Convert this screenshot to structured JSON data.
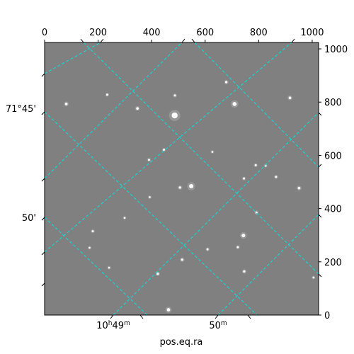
{
  "chart_data": {
    "type": "image",
    "xlabel": "pos.eq.ra",
    "pixel_axes": {
      "x": {
        "range": [
          0,
          1024
        ],
        "ticks": [
          0,
          200,
          400,
          600,
          800,
          1000
        ]
      },
      "y": {
        "range": [
          0,
          1024
        ],
        "ticks": [
          0,
          200,
          400,
          600,
          800,
          1000
        ]
      }
    },
    "world_ticks": {
      "ra_bottom": [
        {
          "base": "10",
          "hour_sup": "h",
          "minutes": "49",
          "min_sup": "m"
        },
        {
          "base": "",
          "hour_sup": "",
          "minutes": "50",
          "min_sup": "m"
        }
      ],
      "dec_left": [
        "71°45'",
        "50'"
      ]
    },
    "grid": {
      "on": true,
      "color": "#00e5e5",
      "style": "dashed"
    },
    "image_background": "#808080",
    "stars": [
      {
        "x": 486,
        "y": 750,
        "mag": 1.0
      },
      {
        "x": 710,
        "y": 793,
        "mag": 0.6
      },
      {
        "x": 548,
        "y": 484,
        "mag": 0.65
      },
      {
        "x": 743,
        "y": 299,
        "mag": 0.5
      },
      {
        "x": 463,
        "y": 20,
        "mag": 0.45
      },
      {
        "x": 81,
        "y": 793,
        "mag": 0.3
      },
      {
        "x": 347,
        "y": 776,
        "mag": 0.3
      },
      {
        "x": 917,
        "y": 816,
        "mag": 0.3
      },
      {
        "x": 951,
        "y": 477,
        "mag": 0.3
      },
      {
        "x": 679,
        "y": 875,
        "mag": 0.25
      },
      {
        "x": 506,
        "y": 479,
        "mag": 0.25
      },
      {
        "x": 746,
        "y": 164,
        "mag": 0.25
      },
      {
        "x": 423,
        "y": 155,
        "mag": 0.25
      },
      {
        "x": 514,
        "y": 208,
        "mag": 0.25
      },
      {
        "x": 722,
        "y": 255,
        "mag": 0.2
      },
      {
        "x": 180,
        "y": 315,
        "mag": 0.2
      },
      {
        "x": 234,
        "y": 828,
        "mag": 0.2
      },
      {
        "x": 446,
        "y": 621,
        "mag": 0.2
      },
      {
        "x": 789,
        "y": 563,
        "mag": 0.2
      },
      {
        "x": 745,
        "y": 513,
        "mag": 0.2
      },
      {
        "x": 390,
        "y": 583,
        "mag": 0.2
      },
      {
        "x": 865,
        "y": 519,
        "mag": 0.2
      },
      {
        "x": 487,
        "y": 825,
        "mag": 0.2
      },
      {
        "x": 792,
        "y": 385,
        "mag": 0.2
      },
      {
        "x": 609,
        "y": 247,
        "mag": 0.2
      },
      {
        "x": 168,
        "y": 253,
        "mag": 0.15
      },
      {
        "x": 1005,
        "y": 141,
        "mag": 0.15
      },
      {
        "x": 393,
        "y": 443,
        "mag": 0.15
      },
      {
        "x": 299,
        "y": 365,
        "mag": 0.15
      },
      {
        "x": 826,
        "y": 561,
        "mag": 0.15
      },
      {
        "x": 627,
        "y": 613,
        "mag": 0.15
      },
      {
        "x": 241,
        "y": 178,
        "mag": 0.15
      }
    ]
  }
}
